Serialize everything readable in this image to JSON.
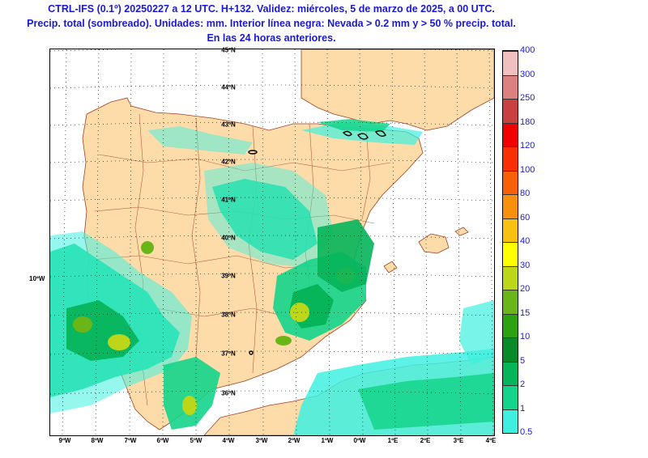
{
  "title": {
    "line1": "CTRL-IFS (0.1º) 20250227 a 12 UTC. H+132. Validez: miércoles, 5 de marzo de 2025, a 00 UTC.",
    "line2": "Precip. total (sombreado). Unidades: mm. Interior línea negra: Nevada > 0.2 mm y > 50 % precip. total.",
    "line3": "En las 24 horas anteriores."
  },
  "map": {
    "lat_labels": [
      "45ºN",
      "44ºN",
      "43ºN",
      "42ºN",
      "41ºN",
      "40ºN",
      "39ºN",
      "38ºN",
      "37ºN",
      "36ºN"
    ],
    "lon_labels": [
      "9ºW",
      "8ºW",
      "7ºW",
      "6ºW",
      "5ºW",
      "4ºW",
      "3ºW",
      "2ºW",
      "1ºW",
      "0ºW",
      "1ºE",
      "2ºE",
      "3ºE",
      "4ºE"
    ],
    "side_label": "10ºW",
    "colors": {
      "land": "#fddcaa",
      "sea": "#ffffff",
      "border": "#a04020",
      "lakes": "#ffffff"
    }
  },
  "colorbar": {
    "levels": [
      "0.5",
      "1",
      "2",
      "5",
      "10",
      "15",
      "20",
      "30",
      "40",
      "60",
      "80",
      "100",
      "120",
      "180",
      "250",
      "300",
      "400"
    ],
    "colors": [
      "#b4dfe6",
      "#3ff0e0",
      "#14d48a",
      "#06b45a",
      "#088a28",
      "#2ba212",
      "#6ab618",
      "#bcd61a",
      "#ffff00",
      "#f8c010",
      "#f8900e",
      "#f86008",
      "#f83004",
      "#f00000",
      "#c84040",
      "#dc8080",
      "#f0c0c0"
    ]
  }
}
